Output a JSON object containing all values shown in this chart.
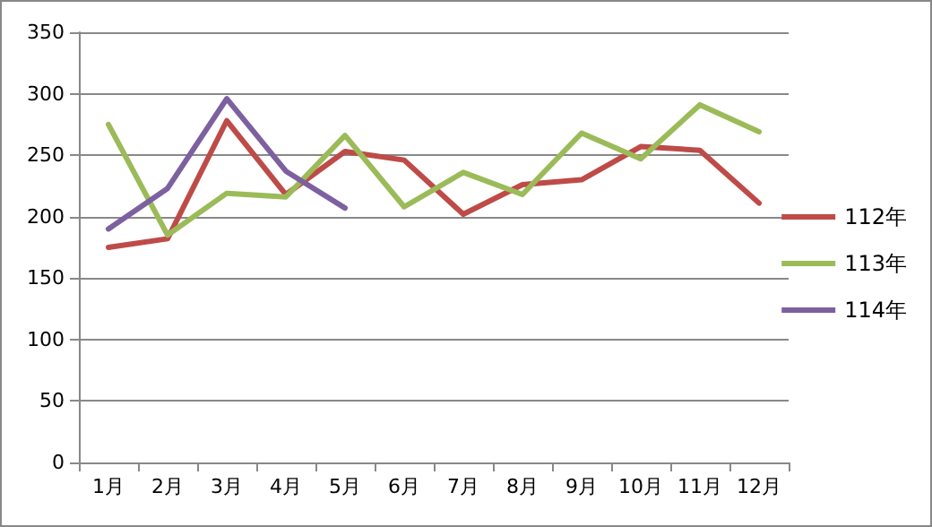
{
  "chart_data": {
    "type": "line",
    "categories": [
      "1月",
      "2月",
      "3月",
      "4月",
      "5月",
      "6月",
      "7月",
      "8月",
      "9月",
      "10月",
      "11月",
      "12月"
    ],
    "series": [
      {
        "name": "112年",
        "color": "#be4b48",
        "values": [
          175,
          182,
          278,
          218,
          253,
          246,
          202,
          226,
          230,
          257,
          254,
          211
        ]
      },
      {
        "name": "113年",
        "color": "#9bbb59",
        "values": [
          275,
          185,
          219,
          216,
          266,
          208,
          236,
          218,
          268,
          247,
          291,
          269
        ]
      },
      {
        "name": "114年",
        "color": "#7d60a0",
        "values": [
          190,
          223,
          296,
          237,
          207,
          null,
          null,
          null,
          null,
          null,
          null,
          null
        ]
      }
    ],
    "ylim": [
      0,
      350
    ],
    "yticks": [
      0,
      50,
      100,
      150,
      200,
      250,
      300,
      350
    ],
    "grid": "y",
    "legend": "right",
    "marker": "none",
    "line_style": "solid"
  }
}
